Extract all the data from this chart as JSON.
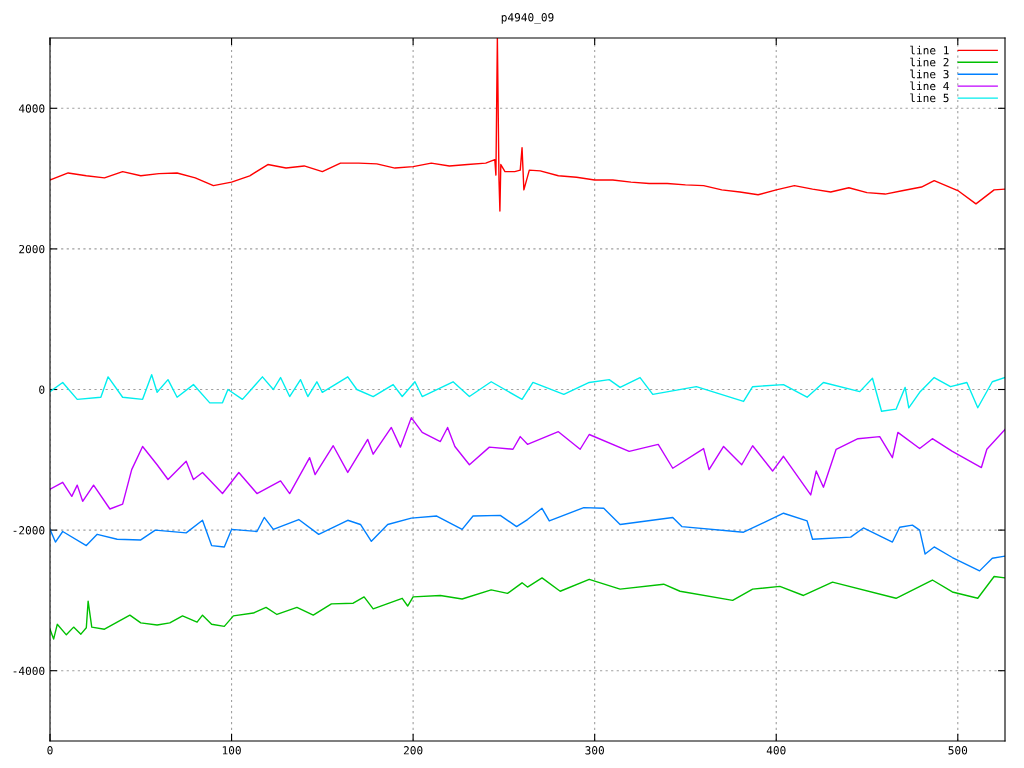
{
  "chart_data": {
    "type": "line",
    "title": "p4940_09",
    "xlim": [
      0,
      526
    ],
    "ylim": [
      -5000,
      5000
    ],
    "xticks": [
      0,
      100,
      200,
      300,
      400,
      500
    ],
    "yticks": [
      -4000,
      -2000,
      0,
      2000,
      4000
    ],
    "grid": true,
    "legend": "top right",
    "marker": "none",
    "line_style": "solid",
    "series": [
      {
        "name": "line 1",
        "color": "#ff0000",
        "x": [
          0,
          10,
          20,
          30,
          40,
          50,
          60,
          70,
          80,
          90,
          100,
          110,
          120,
          130,
          140,
          150,
          160,
          170,
          180,
          190,
          200,
          210,
          220,
          230,
          240,
          245,
          245.6,
          246.4,
          247.3,
          247.8,
          248.3,
          250.6,
          256,
          259,
          260,
          261,
          264,
          270,
          280,
          290,
          300,
          310,
          320,
          330,
          340,
          350,
          360,
          370,
          380,
          390,
          400,
          410,
          420,
          430,
          440,
          450,
          460,
          470,
          480,
          487,
          500,
          510,
          520,
          526
        ],
        "values": [
          2980,
          3080,
          3040,
          3010,
          3100,
          3040,
          3070,
          3080,
          3010,
          2900,
          2950,
          3040,
          3200,
          3150,
          3180,
          3100,
          3220,
          3220,
          3210,
          3150,
          3170,
          3220,
          3180,
          3200,
          3220,
          3270,
          3050,
          5000,
          2980,
          2540,
          3200,
          3100,
          3100,
          3120,
          3440,
          2840,
          3120,
          3110,
          3040,
          3020,
          2980,
          2980,
          2950,
          2930,
          2930,
          2910,
          2900,
          2840,
          2810,
          2770,
          2840,
          2900,
          2850,
          2810,
          2870,
          2800,
          2780,
          2830,
          2880,
          2970,
          2830,
          2640,
          2840,
          2850
        ]
      },
      {
        "name": "line 2",
        "color": "#00c000",
        "x": [
          0,
          2,
          4,
          9,
          13,
          17,
          20,
          21,
          23,
          30,
          44,
          50,
          59,
          66,
          73,
          81,
          84,
          89,
          96,
          101,
          112,
          119,
          125,
          136,
          145,
          155,
          167,
          173,
          178,
          194,
          197,
          200,
          215,
          227,
          243,
          252,
          260,
          263,
          271,
          281,
          297,
          314,
          338,
          347,
          376,
          387,
          402,
          415,
          431,
          466,
          486,
          497,
          511,
          520,
          526
        ],
        "values": [
          -3410,
          -3550,
          -3340,
          -3490,
          -3380,
          -3480,
          -3390,
          -3010,
          -3380,
          -3410,
          -3210,
          -3320,
          -3350,
          -3320,
          -3220,
          -3310,
          -3210,
          -3340,
          -3370,
          -3220,
          -3180,
          -3100,
          -3200,
          -3100,
          -3210,
          -3050,
          -3040,
          -2950,
          -3120,
          -2970,
          -3080,
          -2950,
          -2930,
          -2980,
          -2850,
          -2900,
          -2750,
          -2810,
          -2680,
          -2870,
          -2700,
          -2840,
          -2770,
          -2870,
          -3000,
          -2840,
          -2800,
          -2930,
          -2740,
          -2970,
          -2710,
          -2880,
          -2970,
          -2660,
          -2680
        ]
      },
      {
        "name": "line 3",
        "color": "#0080ff",
        "x": [
          0,
          3,
          7,
          20,
          26,
          37,
          50,
          58,
          75,
          84,
          89,
          96,
          100,
          114,
          118,
          123,
          137,
          148,
          164,
          171,
          177,
          186,
          199,
          213,
          227,
          233,
          248,
          257,
          263,
          271,
          275,
          294,
          305,
          314,
          343,
          348,
          382,
          404,
          417,
          420,
          441,
          448,
          464,
          468,
          475,
          479,
          482,
          487,
          497,
          512,
          519,
          526
        ],
        "values": [
          -1990,
          -2170,
          -2020,
          -2220,
          -2060,
          -2130,
          -2140,
          -2000,
          -2040,
          -1860,
          -2220,
          -2240,
          -1990,
          -2020,
          -1820,
          -1990,
          -1850,
          -2060,
          -1860,
          -1920,
          -2160,
          -1920,
          -1830,
          -1800,
          -1990,
          -1800,
          -1790,
          -1950,
          -1850,
          -1690,
          -1870,
          -1680,
          -1690,
          -1920,
          -1820,
          -1950,
          -2030,
          -1760,
          -1870,
          -2130,
          -2100,
          -1970,
          -2170,
          -1960,
          -1930,
          -2000,
          -2340,
          -2240,
          -2390,
          -2580,
          -2400,
          -2370
        ]
      },
      {
        "name": "line 4",
        "color": "#c000ff",
        "x": [
          0,
          7,
          12,
          15,
          18,
          24,
          33,
          40,
          45,
          51,
          59,
          65,
          75,
          79,
          84,
          95,
          104,
          114,
          127,
          132,
          143,
          146,
          156,
          164,
          175,
          178,
          188,
          193,
          199,
          205,
          215,
          219,
          223,
          231,
          242,
          255,
          259,
          263,
          280,
          292,
          297,
          319,
          335,
          343,
          360,
          363,
          371,
          381,
          387,
          398,
          404,
          419,
          422,
          426,
          433,
          445,
          457,
          464,
          467,
          479,
          486,
          497,
          513,
          516,
          526
        ],
        "values": [
          -1420,
          -1320,
          -1520,
          -1360,
          -1590,
          -1360,
          -1700,
          -1630,
          -1140,
          -810,
          -1070,
          -1280,
          -1020,
          -1280,
          -1180,
          -1480,
          -1180,
          -1480,
          -1300,
          -1480,
          -970,
          -1210,
          -800,
          -1180,
          -710,
          -920,
          -540,
          -820,
          -400,
          -610,
          -740,
          -540,
          -810,
          -1070,
          -820,
          -850,
          -670,
          -780,
          -600,
          -850,
          -640,
          -880,
          -780,
          -1120,
          -840,
          -1140,
          -810,
          -1070,
          -800,
          -1160,
          -950,
          -1500,
          -1160,
          -1390,
          -850,
          -700,
          -670,
          -970,
          -610,
          -840,
          -700,
          -880,
          -1110,
          -850,
          -570
        ]
      },
      {
        "name": "line 5",
        "color": "#00eeee",
        "x": [
          0,
          7,
          15,
          28,
          32,
          40,
          51,
          56,
          59,
          65,
          70,
          79,
          88,
          95,
          98,
          106,
          117,
          123,
          127,
          132,
          138,
          142,
          147,
          150,
          164,
          169,
          178,
          189,
          194,
          201,
          205,
          222,
          231,
          243,
          260,
          266,
          283,
          297,
          308,
          314,
          325,
          332,
          356,
          382,
          387,
          404,
          417,
          426,
          446,
          453,
          458,
          466,
          471,
          473,
          479,
          487,
          496,
          505,
          511,
          519,
          526
        ],
        "values": [
          -30,
          100,
          -140,
          -110,
          180,
          -110,
          -140,
          210,
          -40,
          140,
          -110,
          70,
          -190,
          -190,
          0,
          -140,
          180,
          0,
          170,
          -100,
          140,
          -100,
          110,
          -40,
          180,
          0,
          -100,
          70,
          -100,
          110,
          -100,
          110,
          -100,
          110,
          -140,
          100,
          -70,
          100,
          140,
          30,
          170,
          -70,
          40,
          -170,
          40,
          70,
          -110,
          100,
          -30,
          160,
          -310,
          -280,
          30,
          -260,
          -40,
          170,
          40,
          100,
          -260,
          110,
          170
        ]
      }
    ]
  }
}
